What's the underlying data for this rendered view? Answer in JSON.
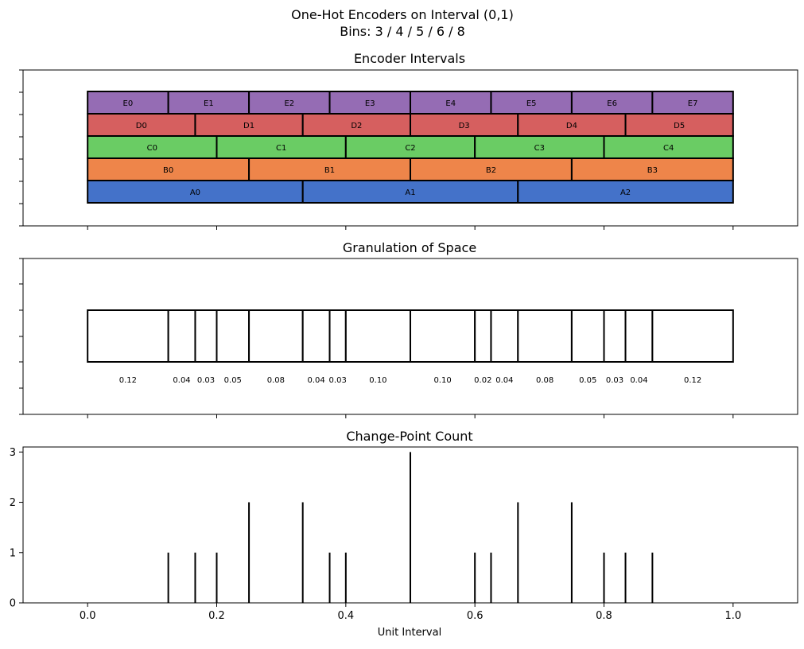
{
  "figure": {
    "title_line1": "One-Hot Encoders on Interval (0,1)",
    "title_line2": "Bins: 3 / 4 / 5 / 6 / 8"
  },
  "chart_data": [
    {
      "type": "bar",
      "title": "Encoder Intervals",
      "xlim": [
        -0.1,
        1.1
      ],
      "rows": [
        {
          "prefix": "A",
          "bins": 3,
          "color": "#4472c9"
        },
        {
          "prefix": "B",
          "bins": 4,
          "color": "#ee854a"
        },
        {
          "prefix": "C",
          "bins": 5,
          "color": "#6acc64"
        },
        {
          "prefix": "D",
          "bins": 6,
          "color": "#d65f5f"
        },
        {
          "prefix": "E",
          "bins": 8,
          "color": "#956cb4"
        }
      ]
    },
    {
      "type": "bar",
      "title": "Granulation of Space",
      "xlim": [
        -0.1,
        1.1
      ],
      "boundaries": [
        0,
        0.125,
        0.1667,
        0.2,
        0.25,
        0.3333,
        0.375,
        0.4,
        0.5,
        0.6,
        0.625,
        0.6667,
        0.75,
        0.8,
        0.8333,
        0.875,
        1
      ],
      "width_labels": [
        "0.12",
        "0.04",
        "0.03",
        "0.05",
        "0.08",
        "0.04",
        "0.03",
        "0.10",
        "0.10",
        "0.02",
        "0.04",
        "0.08",
        "0.05",
        "0.03",
        "0.04",
        "0.12"
      ]
    },
    {
      "type": "bar",
      "title": "Change-Point Count",
      "xlabel": "Unit Interval",
      "xlim": [
        -0.1,
        1.1
      ],
      "ylim": [
        0,
        3.1
      ],
      "x": [
        0.125,
        0.1667,
        0.2,
        0.25,
        0.3333,
        0.375,
        0.4,
        0.5,
        0.6,
        0.625,
        0.6667,
        0.75,
        0.8,
        0.8333,
        0.875
      ],
      "values": [
        1,
        1,
        1,
        2,
        2,
        1,
        1,
        3,
        1,
        1,
        2,
        2,
        1,
        1,
        1
      ],
      "yticks": [
        0,
        1,
        2,
        3
      ],
      "xticks": [
        0.0,
        0.2,
        0.4,
        0.6,
        0.8,
        1.0
      ],
      "xtick_labels": [
        "0.0",
        "0.2",
        "0.4",
        "0.6",
        "0.8",
        "1.0"
      ]
    }
  ]
}
